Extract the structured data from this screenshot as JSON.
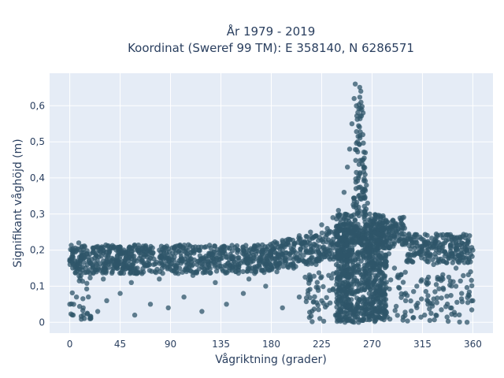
{
  "chart_data": {
    "type": "scatter",
    "title": [
      "År 1979 - 2019",
      "Koordinat (Sweref 99 TM): E 358140, N 6286571"
    ],
    "xlabel": "Vågriktning (grader)",
    "ylabel": "Signifikant våghöjd (m)",
    "xlim": [
      -18,
      378
    ],
    "ylim": [
      -0.03,
      0.69
    ],
    "xticks": [
      0,
      45,
      90,
      135,
      180,
      225,
      270,
      315,
      360
    ],
    "xtick_labels": [
      "0",
      "45",
      "90",
      "135",
      "180",
      "225",
      "270",
      "315",
      "360"
    ],
    "yticks": [
      0,
      0.1,
      0.2,
      0.3,
      0.4,
      0.5,
      0.6
    ],
    "ytick_labels": [
      "0",
      "0,1",
      "0,2",
      "0,3",
      "0,4",
      "0,5",
      "0,6"
    ],
    "grid": true,
    "marker_color": "#2f5669",
    "background": "#e5ecf6",
    "series": [
      {
        "points": [
          [
            0,
            0.17
          ],
          [
            2,
            0.2
          ],
          [
            5,
            0.15
          ],
          [
            8,
            0.22
          ],
          [
            10,
            0.18
          ],
          [
            15,
            0.19
          ],
          [
            20,
            0.16
          ],
          [
            25,
            0.21
          ],
          [
            30,
            0.17
          ],
          [
            35,
            0.2
          ],
          [
            40,
            0.16
          ],
          [
            45,
            0.19
          ],
          [
            50,
            0.18
          ],
          [
            55,
            0.15
          ],
          [
            60,
            0.2
          ],
          [
            65,
            0.17
          ],
          [
            70,
            0.19
          ],
          [
            75,
            0.16
          ],
          [
            80,
            0.2
          ],
          [
            85,
            0.18
          ],
          [
            90,
            0.16
          ],
          [
            95,
            0.2
          ],
          [
            100,
            0.17
          ],
          [
            105,
            0.19
          ],
          [
            110,
            0.16
          ],
          [
            115,
            0.2
          ],
          [
            120,
            0.17
          ],
          [
            125,
            0.19
          ],
          [
            130,
            0.16
          ],
          [
            135,
            0.2
          ],
          [
            140,
            0.18
          ],
          [
            145,
            0.16
          ],
          [
            150,
            0.2
          ],
          [
            155,
            0.17
          ],
          [
            160,
            0.19
          ],
          [
            165,
            0.21
          ],
          [
            170,
            0.18
          ],
          [
            175,
            0.2
          ],
          [
            180,
            0.19
          ],
          [
            185,
            0.22
          ],
          [
            190,
            0.2
          ],
          [
            195,
            0.23
          ],
          [
            200,
            0.21
          ],
          [
            205,
            0.24
          ],
          [
            210,
            0.22
          ],
          [
            215,
            0.25
          ],
          [
            220,
            0.24
          ],
          [
            225,
            0.27
          ],
          [
            230,
            0.26
          ],
          [
            235,
            0.29
          ],
          [
            240,
            0.31
          ],
          [
            245,
            0.36
          ],
          [
            248,
            0.43
          ],
          [
            250,
            0.48
          ],
          [
            252,
            0.55
          ],
          [
            254,
            0.62
          ],
          [
            255,
            0.66
          ],
          [
            256,
            0.6
          ],
          [
            257,
            0.5
          ],
          [
            258,
            0.4
          ],
          [
            260,
            0.64
          ],
          [
            262,
            0.58
          ],
          [
            264,
            0.47
          ],
          [
            265,
            0.38
          ],
          [
            266,
            0.33
          ],
          [
            268,
            0.3
          ],
          [
            270,
            0.28
          ],
          [
            275,
            0.27
          ],
          [
            280,
            0.26
          ],
          [
            285,
            0.25
          ],
          [
            290,
            0.24
          ],
          [
            295,
            0.23
          ],
          [
            300,
            0.22
          ],
          [
            305,
            0.23
          ],
          [
            310,
            0.22
          ],
          [
            315,
            0.21
          ],
          [
            320,
            0.22
          ],
          [
            325,
            0.21
          ],
          [
            330,
            0.2
          ],
          [
            335,
            0.22
          ],
          [
            340,
            0.21
          ],
          [
            345,
            0.2
          ],
          [
            350,
            0.22
          ],
          [
            355,
            0.21
          ],
          [
            360,
            0.2
          ],
          [
            0,
            0.05
          ],
          [
            3,
            0.02
          ],
          [
            6,
            0.07
          ],
          [
            12,
            0.04
          ],
          [
            18,
            0.01
          ],
          [
            25,
            0.03
          ],
          [
            33,
            0.06
          ],
          [
            45,
            0.08
          ],
          [
            58,
            0.02
          ],
          [
            72,
            0.05
          ],
          [
            88,
            0.04
          ],
          [
            102,
            0.07
          ],
          [
            118,
            0.03
          ],
          [
            140,
            0.05
          ],
          [
            155,
            0.08
          ],
          [
            175,
            0.1
          ],
          [
            190,
            0.04
          ],
          [
            205,
            0.07
          ],
          [
            215,
            0.12
          ],
          [
            225,
            0.06
          ],
          [
            235,
            0.09
          ],
          [
            240,
            0.02
          ],
          [
            245,
            0.05
          ],
          [
            250,
            0.01
          ],
          [
            255,
            0.03
          ],
          [
            258,
            0.0
          ],
          [
            262,
            0.07
          ],
          [
            266,
            0.1
          ],
          [
            270,
            0.05
          ],
          [
            275,
            0.13
          ],
          [
            280,
            0.03
          ],
          [
            290,
            0.15
          ],
          [
            300,
            0.06
          ],
          [
            310,
            0.1
          ],
          [
            320,
            0.05
          ],
          [
            330,
            0.12
          ],
          [
            340,
            0.04
          ],
          [
            350,
            0.08
          ],
          [
            360,
            0.06
          ],
          [
            10,
            0.13
          ],
          [
            30,
            0.12
          ],
          [
            55,
            0.11
          ],
          [
            80,
            0.12
          ],
          [
            110,
            0.13
          ],
          [
            130,
            0.11
          ],
          [
            160,
            0.12
          ],
          [
            185,
            0.14
          ],
          [
            200,
            0.15
          ],
          [
            220,
            0.16
          ],
          [
            245,
            0.2
          ],
          [
            252,
            0.25
          ],
          [
            258,
            0.35
          ],
          [
            262,
            0.45
          ],
          [
            267,
            0.18
          ],
          [
            285,
            0.19
          ],
          [
            305,
            0.17
          ],
          [
            325,
            0.16
          ],
          [
            345,
            0.15
          ],
          [
            358,
            0.14
          ]
        ]
      }
    ]
  }
}
